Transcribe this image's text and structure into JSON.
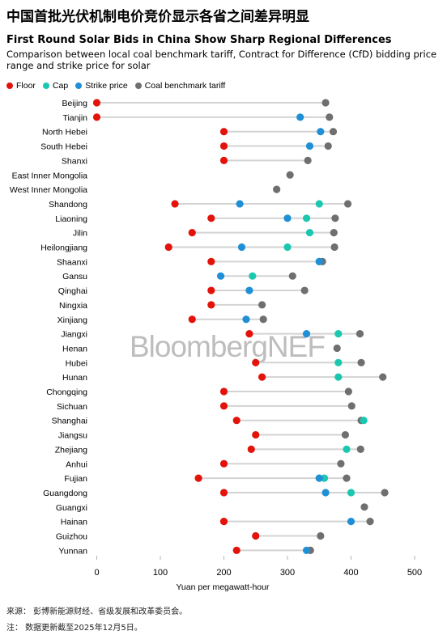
{
  "header": {
    "cn_title": "中国首批光伏机制电价竞价显示各省之间差异明显",
    "title": "First Round Solar Bids in China Show Sharp Regional Differences",
    "subtitle": "Comparison between local coal benchmark tariff, Contract for Difference (CfD) bidding price range and strike price for solar"
  },
  "colors": {
    "floor": "#e3120b",
    "cap": "#1cc7b0",
    "strike": "#1f8fd6",
    "coal": "#6f6f6f",
    "line": "#d3d3d3",
    "axis": "#b5b5b5"
  },
  "legend": [
    {
      "key": "floor",
      "label": "Floor"
    },
    {
      "key": "cap",
      "label": "Cap"
    },
    {
      "key": "strike",
      "label": "Strike price"
    },
    {
      "key": "coal",
      "label": "Coal benchmark tariff"
    }
  ],
  "watermark": "BloombergNEF",
  "footer": {
    "source": "来源： 彭博新能源财经、省级发展和改革委员会。",
    "note": "注： 数据更新截至2025年12月5日。"
  },
  "chart_data": {
    "type": "scatter",
    "title": "First Round Solar Bids in China Show Sharp Regional Differences",
    "xlabel": "Yuan per megawatt-hour",
    "xlim": [
      0,
      500
    ],
    "xticks": [
      0,
      100,
      200,
      300,
      400,
      500
    ],
    "series_names": [
      "Floor",
      "Cap",
      "Strike price",
      "Coal benchmark tariff"
    ],
    "rows": [
      {
        "province": "Beijing",
        "floor": 0,
        "cap": null,
        "strike": null,
        "coal": 360
      },
      {
        "province": "Tianjin",
        "floor": 0,
        "cap": null,
        "strike": 320,
        "coal": 366
      },
      {
        "province": "North Hebei",
        "floor": 200,
        "cap": null,
        "strike": 352,
        "coal": 372
      },
      {
        "province": "South Hebei",
        "floor": 200,
        "cap": null,
        "strike": 335,
        "coal": 364
      },
      {
        "province": "Shanxi",
        "floor": 200,
        "cap": null,
        "strike": null,
        "coal": 332
      },
      {
        "province": "East Inner Mongolia",
        "floor": null,
        "cap": null,
        "strike": null,
        "coal": 304
      },
      {
        "province": "West Inner Mongolia",
        "floor": null,
        "cap": null,
        "strike": null,
        "coal": 283
      },
      {
        "province": "Shandong",
        "floor": 123,
        "cap": 350,
        "strike": 225,
        "coal": 395
      },
      {
        "province": "Liaoning",
        "floor": 180,
        "cap": 330,
        "strike": 300,
        "coal": 375
      },
      {
        "province": "Jilin",
        "floor": 150,
        "cap": 335,
        "strike": null,
        "coal": 373
      },
      {
        "province": "Heilongjiang",
        "floor": 113,
        "cap": 300,
        "strike": 228,
        "coal": 374
      },
      {
        "province": "Shaanxi",
        "floor": 180,
        "cap": 350,
        "strike": 350,
        "coal": 355
      },
      {
        "province": "Gansu",
        "floor": null,
        "cap": 245,
        "strike": 195,
        "coal": 308
      },
      {
        "province": "Qinghai",
        "floor": 180,
        "cap": null,
        "strike": 240,
        "coal": 327
      },
      {
        "province": "Ningxia",
        "floor": 180,
        "cap": null,
        "strike": null,
        "coal": 260
      },
      {
        "province": "Xinjiang",
        "floor": 150,
        "cap": null,
        "strike": 235,
        "coal": 262
      },
      {
        "province": "Jiangxi",
        "floor": 240,
        "cap": 380,
        "strike": 330,
        "coal": 414
      },
      {
        "province": "Henan",
        "floor": null,
        "cap": null,
        "strike": null,
        "coal": 378
      },
      {
        "province": "Hubei",
        "floor": 250,
        "cap": 380,
        "strike": null,
        "coal": 416
      },
      {
        "province": "Hunan",
        "floor": 260,
        "cap": 380,
        "strike": null,
        "coal": 450
      },
      {
        "province": "Chongqing",
        "floor": 200,
        "cap": null,
        "strike": null,
        "coal": 396
      },
      {
        "province": "Sichuan",
        "floor": 200,
        "cap": null,
        "strike": null,
        "coal": 401
      },
      {
        "province": "Shanghai",
        "floor": 220,
        "cap": 420,
        "strike": null,
        "coal": 416
      },
      {
        "province": "Jiangsu",
        "floor": 250,
        "cap": null,
        "strike": null,
        "coal": 391
      },
      {
        "province": "Zhejiang",
        "floor": 243,
        "cap": 393,
        "strike": null,
        "coal": 415
      },
      {
        "province": "Anhui",
        "floor": 200,
        "cap": null,
        "strike": null,
        "coal": 384
      },
      {
        "province": "Fujian",
        "floor": 160,
        "cap": 358,
        "strike": 350,
        "coal": 393
      },
      {
        "province": "Guangdong",
        "floor": 200,
        "cap": 400,
        "strike": 360,
        "coal": 453
      },
      {
        "province": "Guangxi",
        "floor": null,
        "cap": null,
        "strike": null,
        "coal": 421
      },
      {
        "province": "Hainan",
        "floor": 200,
        "cap": null,
        "strike": 400,
        "coal": 430
      },
      {
        "province": "Guizhou",
        "floor": 250,
        "cap": null,
        "strike": null,
        "coal": 352
      },
      {
        "province": "Yunnan",
        "floor": 220,
        "cap": null,
        "strike": 330,
        "coal": 336
      }
    ]
  }
}
